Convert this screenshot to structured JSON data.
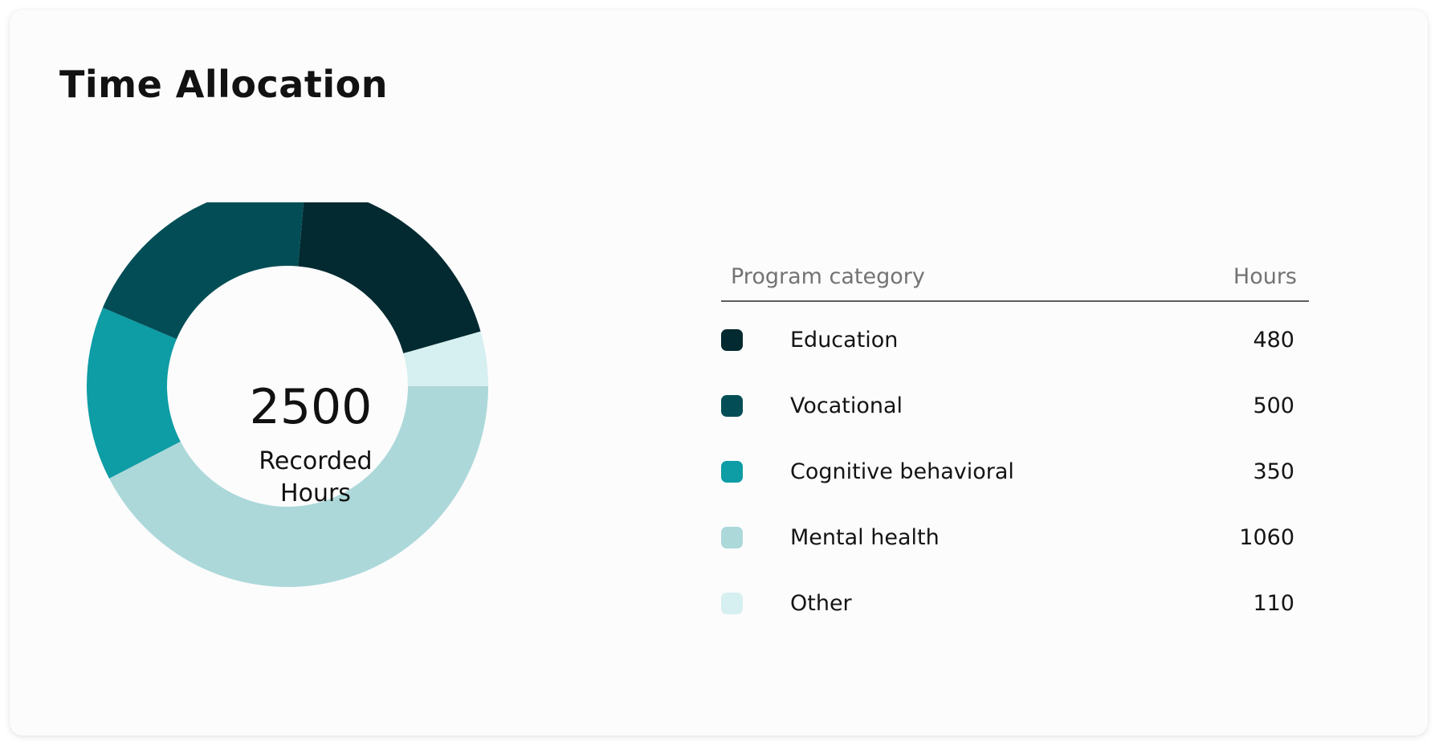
{
  "card": {
    "title": "Time Allocation"
  },
  "center": {
    "total": "2500",
    "label_line1": "Recorded",
    "label_line2": "Hours"
  },
  "legend": {
    "header_category": "Program category",
    "header_hours": "Hours",
    "rows": [
      {
        "label": "Education",
        "value": "480",
        "color": "#022a30"
      },
      {
        "label": "Vocational",
        "value": "500",
        "color": "#034e56"
      },
      {
        "label": "Cognitive behavioral",
        "value": "350",
        "color": "#0e9ca5"
      },
      {
        "label": "Mental health",
        "value": "1060",
        "color": "#acd8da"
      },
      {
        "label": "Other",
        "value": "110",
        "color": "#d6eff0"
      }
    ]
  },
  "chart_data": {
    "type": "pie",
    "subtype": "donut",
    "title": "Time Allocation",
    "center_value": 2500,
    "center_label": "Recorded Hours",
    "categories": [
      "Education",
      "Vocational",
      "Cognitive behavioral",
      "Mental health",
      "Other"
    ],
    "values": [
      480,
      500,
      350,
      1060,
      110
    ],
    "colors": [
      "#022a30",
      "#034e56",
      "#0e9ca5",
      "#acd8da",
      "#d6eff0"
    ],
    "legend": "right"
  }
}
